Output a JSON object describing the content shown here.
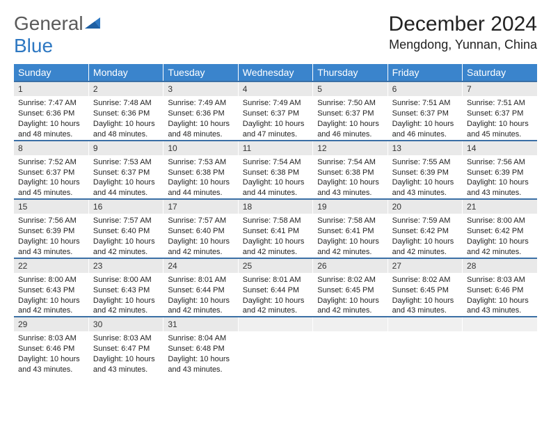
{
  "logo": {
    "word1": "General",
    "word2": "Blue"
  },
  "title": "December 2024",
  "location": "Mengdong, Yunnan, China",
  "colors": {
    "header_bg": "#3a84cc",
    "header_fg": "#ffffff",
    "row_divider": "#3a6fa5",
    "daynum_bg": "#e9e9e9",
    "logo_gray": "#5a5a5a",
    "logo_blue": "#2e78c2"
  },
  "weekdays": [
    "Sunday",
    "Monday",
    "Tuesday",
    "Wednesday",
    "Thursday",
    "Friday",
    "Saturday"
  ],
  "weeks": [
    [
      {
        "n": "1",
        "sr": "7:47 AM",
        "ss": "6:36 PM",
        "dl": "10 hours and 48 minutes."
      },
      {
        "n": "2",
        "sr": "7:48 AM",
        "ss": "6:36 PM",
        "dl": "10 hours and 48 minutes."
      },
      {
        "n": "3",
        "sr": "7:49 AM",
        "ss": "6:36 PM",
        "dl": "10 hours and 48 minutes."
      },
      {
        "n": "4",
        "sr": "7:49 AM",
        "ss": "6:37 PM",
        "dl": "10 hours and 47 minutes."
      },
      {
        "n": "5",
        "sr": "7:50 AM",
        "ss": "6:37 PM",
        "dl": "10 hours and 46 minutes."
      },
      {
        "n": "6",
        "sr": "7:51 AM",
        "ss": "6:37 PM",
        "dl": "10 hours and 46 minutes."
      },
      {
        "n": "7",
        "sr": "7:51 AM",
        "ss": "6:37 PM",
        "dl": "10 hours and 45 minutes."
      }
    ],
    [
      {
        "n": "8",
        "sr": "7:52 AM",
        "ss": "6:37 PM",
        "dl": "10 hours and 45 minutes."
      },
      {
        "n": "9",
        "sr": "7:53 AM",
        "ss": "6:37 PM",
        "dl": "10 hours and 44 minutes."
      },
      {
        "n": "10",
        "sr": "7:53 AM",
        "ss": "6:38 PM",
        "dl": "10 hours and 44 minutes."
      },
      {
        "n": "11",
        "sr": "7:54 AM",
        "ss": "6:38 PM",
        "dl": "10 hours and 44 minutes."
      },
      {
        "n": "12",
        "sr": "7:54 AM",
        "ss": "6:38 PM",
        "dl": "10 hours and 43 minutes."
      },
      {
        "n": "13",
        "sr": "7:55 AM",
        "ss": "6:39 PM",
        "dl": "10 hours and 43 minutes."
      },
      {
        "n": "14",
        "sr": "7:56 AM",
        "ss": "6:39 PM",
        "dl": "10 hours and 43 minutes."
      }
    ],
    [
      {
        "n": "15",
        "sr": "7:56 AM",
        "ss": "6:39 PM",
        "dl": "10 hours and 43 minutes."
      },
      {
        "n": "16",
        "sr": "7:57 AM",
        "ss": "6:40 PM",
        "dl": "10 hours and 42 minutes."
      },
      {
        "n": "17",
        "sr": "7:57 AM",
        "ss": "6:40 PM",
        "dl": "10 hours and 42 minutes."
      },
      {
        "n": "18",
        "sr": "7:58 AM",
        "ss": "6:41 PM",
        "dl": "10 hours and 42 minutes."
      },
      {
        "n": "19",
        "sr": "7:58 AM",
        "ss": "6:41 PM",
        "dl": "10 hours and 42 minutes."
      },
      {
        "n": "20",
        "sr": "7:59 AM",
        "ss": "6:42 PM",
        "dl": "10 hours and 42 minutes."
      },
      {
        "n": "21",
        "sr": "8:00 AM",
        "ss": "6:42 PM",
        "dl": "10 hours and 42 minutes."
      }
    ],
    [
      {
        "n": "22",
        "sr": "8:00 AM",
        "ss": "6:43 PM",
        "dl": "10 hours and 42 minutes."
      },
      {
        "n": "23",
        "sr": "8:00 AM",
        "ss": "6:43 PM",
        "dl": "10 hours and 42 minutes."
      },
      {
        "n": "24",
        "sr": "8:01 AM",
        "ss": "6:44 PM",
        "dl": "10 hours and 42 minutes."
      },
      {
        "n": "25",
        "sr": "8:01 AM",
        "ss": "6:44 PM",
        "dl": "10 hours and 42 minutes."
      },
      {
        "n": "26",
        "sr": "8:02 AM",
        "ss": "6:45 PM",
        "dl": "10 hours and 42 minutes."
      },
      {
        "n": "27",
        "sr": "8:02 AM",
        "ss": "6:45 PM",
        "dl": "10 hours and 43 minutes."
      },
      {
        "n": "28",
        "sr": "8:03 AM",
        "ss": "6:46 PM",
        "dl": "10 hours and 43 minutes."
      }
    ],
    [
      {
        "n": "29",
        "sr": "8:03 AM",
        "ss": "6:46 PM",
        "dl": "10 hours and 43 minutes."
      },
      {
        "n": "30",
        "sr": "8:03 AM",
        "ss": "6:47 PM",
        "dl": "10 hours and 43 minutes."
      },
      {
        "n": "31",
        "sr": "8:04 AM",
        "ss": "6:48 PM",
        "dl": "10 hours and 43 minutes."
      },
      null,
      null,
      null,
      null
    ]
  ],
  "labels": {
    "sunrise": "Sunrise:",
    "sunset": "Sunset:",
    "daylight": "Daylight:"
  }
}
